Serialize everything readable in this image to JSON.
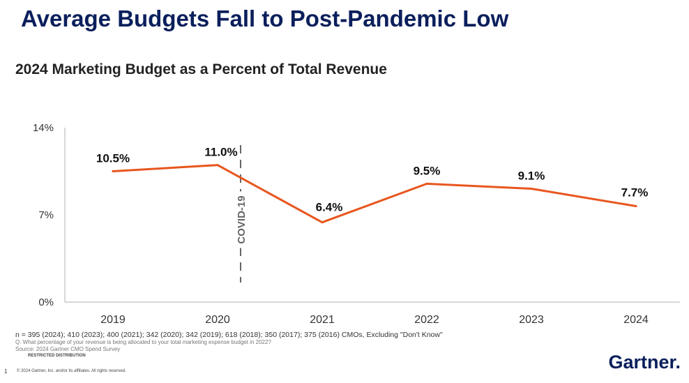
{
  "header": {
    "headline": "Average Budgets Fall to Post-Pandemic Low",
    "subtitle": "2024 Marketing Budget as a Percent of Total Revenue"
  },
  "chart_data": {
    "type": "line",
    "categories": [
      "2019",
      "2020",
      "2021",
      "2022",
      "2023",
      "2024"
    ],
    "series": [
      {
        "values": [
          10.5,
          11.0,
          6.4,
          9.5,
          9.1,
          7.7
        ]
      }
    ],
    "data_labels": [
      "10.5%",
      "11.0%",
      "6.4%",
      "9.5%",
      "9.1%",
      "7.7%"
    ],
    "y_ticks": [
      {
        "value": 14,
        "label": "14%"
      },
      {
        "value": 7,
        "label": "7%"
      },
      {
        "value": 0,
        "label": "0%"
      }
    ],
    "ylim": [
      0,
      14
    ],
    "grid": false,
    "line_color": "#e8561e",
    "annotation": {
      "text": "COVID-19",
      "between": [
        "2020",
        "2021"
      ]
    }
  },
  "footnotes": {
    "sample": "n = 395 (2024); 410 (2023); 400 (2021); 342 (2020); 342 (2019); 618 (2018); 350 (2017); 375 (2016) CMOs, Excluding \"Don't Know\"",
    "question": "Q. What percentage of your revenue is being allocated to your total marketing expense budget in 2022?",
    "source": "Source: 2024 Gartner CMO Spend Survey",
    "distribution": "RESTRICTED DISTRIBUTION",
    "page": "1",
    "copyright": "© 2024 Gartner, Inc. and/or its affiliates. All rights reserved."
  },
  "brand": {
    "name": "Gartner."
  }
}
